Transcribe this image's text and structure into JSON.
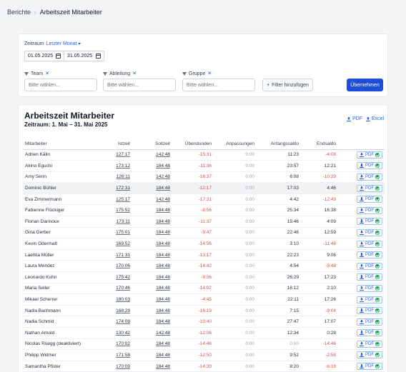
{
  "breadcrumb": {
    "parent": "Berichte",
    "current": "Arbeitszeit Mitarbeiter"
  },
  "filters": {
    "zeitraum_label": "Zeitraum",
    "zeitraum_preset": "Letzter Monat",
    "date_from": "01.05.2025",
    "date_to": "31.05.2025",
    "team_label": "Team",
    "abteilung_label": "Abteilung",
    "gruppe_label": "Gruppe",
    "select_placeholder": "Bitte wählen...",
    "add_filter_label": "Filter hinzufügen",
    "apply_label": "Übernehmen"
  },
  "report": {
    "title": "Arbeitszeit Mitarbeiter",
    "subtitle": "Zeitraum: 1. Mai – 31. Mai 2025",
    "pdf_label": "PDF",
    "excel_label": "Excel"
  },
  "table": {
    "headers": [
      "Mitarbeiter",
      "Istzeit",
      "Sollzeit",
      "Überstunden",
      "Anpassungen",
      "Anfangssaldo",
      "Endsaldo"
    ],
    "row_pdf_label": "PDF",
    "rows": [
      {
        "name": "Adrien Kälin",
        "ist": "127:17",
        "soll": "142:48",
        "ueber": "-15:31",
        "anp": "0:00",
        "anfang": "11:23",
        "end": "-4:08"
      },
      {
        "name": "Akino Eguchi",
        "ist": "173:12",
        "soll": "184:48",
        "ueber": "-11:36",
        "anp": "0:00",
        "anfang": "23:57",
        "end": "12:21"
      },
      {
        "name": "Amy Senn",
        "ist": "126:11",
        "soll": "142:48",
        "ueber": "-16:37",
        "anp": "0:00",
        "anfang": "6:08",
        "end": "-10:29"
      },
      {
        "name": "Dominic Bühler",
        "ist": "172:31",
        "soll": "184:48",
        "ueber": "-12:17",
        "anp": "0:00",
        "anfang": "17:03",
        "end": "4:46"
      },
      {
        "name": "Eva Zimmermann",
        "ist": "125:17",
        "soll": "142:48",
        "ueber": "-17:31",
        "anp": "0:00",
        "anfang": "4:42",
        "end": "-12:49"
      },
      {
        "name": "Fabienne Flückiger",
        "ist": "175:52",
        "soll": "184:48",
        "ueber": "-8:56",
        "anp": "0:00",
        "anfang": "25:34",
        "end": "16:38"
      },
      {
        "name": "Florian Dannoux",
        "ist": "173:11",
        "soll": "184:48",
        "ueber": "-11:37",
        "anp": "0:00",
        "anfang": "15:46",
        "end": "4:09"
      },
      {
        "name": "Gina Gerber",
        "ist": "175:01",
        "soll": "184:48",
        "ueber": "-9:47",
        "anp": "0:00",
        "anfang": "22:46",
        "end": "12:59"
      },
      {
        "name": "Kevin Odermatt",
        "ist": "169:52",
        "soll": "184:48",
        "ueber": "-14:56",
        "anp": "0:00",
        "anfang": "3:10",
        "end": "-11:46"
      },
      {
        "name": "Laetitia Müller",
        "ist": "171:31",
        "soll": "184:48",
        "ueber": "-13:17",
        "anp": "0:00",
        "anfang": "22:23",
        "end": "9:06"
      },
      {
        "name": "Laura Mendez",
        "ist": "170:06",
        "soll": "184:48",
        "ueber": "-14:42",
        "anp": "0:00",
        "anfang": "4:54",
        "end": "-9:48"
      },
      {
        "name": "Leonardo Kuhn",
        "ist": "175:42",
        "soll": "184:48",
        "ueber": "-9:06",
        "anp": "0:00",
        "anfang": "26:29",
        "end": "17:23"
      },
      {
        "name": "Maria Seiler",
        "ist": "170:46",
        "soll": "184:48",
        "ueber": "-14:02",
        "anp": "0:00",
        "anfang": "16:12",
        "end": "2:10"
      },
      {
        "name": "Mikael Scherrer",
        "ist": "180:03",
        "soll": "184:48",
        "ueber": "-4:45",
        "anp": "0:00",
        "anfang": "22:11",
        "end": "17:26"
      },
      {
        "name": "Nadia Bachmann",
        "ist": "168:29",
        "soll": "184:48",
        "ueber": "-16:19",
        "anp": "0:00",
        "anfang": "7:15",
        "end": "-9:04"
      },
      {
        "name": "Nadia Schmid",
        "ist": "174:08",
        "soll": "184:48",
        "ueber": "-10:40",
        "anp": "0:00",
        "anfang": "27:47",
        "end": "17:07"
      },
      {
        "name": "Nathan Arnold",
        "ist": "130:42",
        "soll": "142:48",
        "ueber": "-12:06",
        "anp": "0:00",
        "anfang": "12:34",
        "end": "0:28"
      },
      {
        "name": "Nicolas Rüegg (deaktiviert)",
        "ist": "170:02",
        "soll": "184:48",
        "ueber": "-14:46",
        "anp": "0:00",
        "anfang": "0:00",
        "end": "-14:46"
      },
      {
        "name": "Philipp Widmer",
        "ist": "171:58",
        "soll": "184:48",
        "ueber": "-12:50",
        "anp": "0:00",
        "anfang": "9:52",
        "end": "-2:58"
      },
      {
        "name": "Samantha Pfister",
        "ist": "170:09",
        "soll": "184:48",
        "ueber": "-14:39",
        "anp": "0:00",
        "anfang": "8:20",
        "end": "-6:19"
      }
    ]
  }
}
